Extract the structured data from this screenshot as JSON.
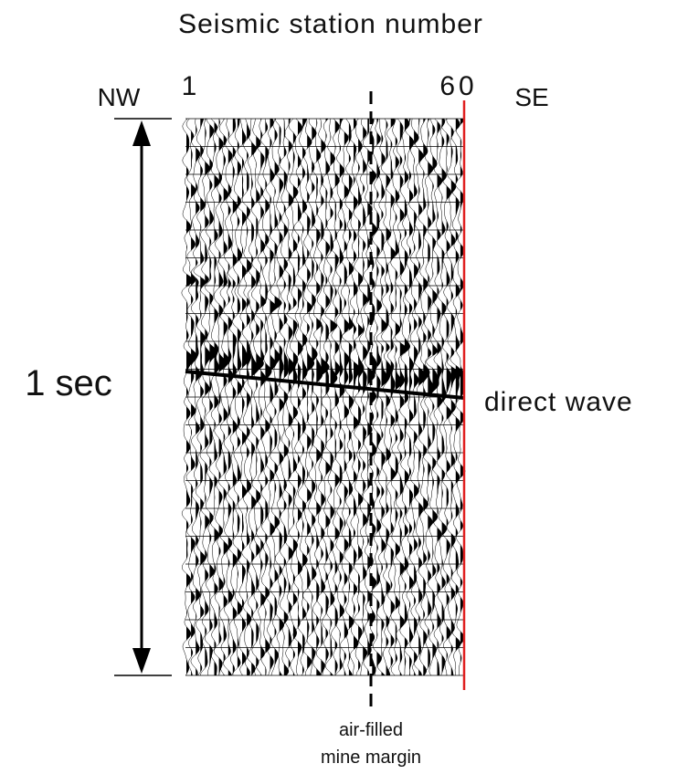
{
  "title": "Seismic station number",
  "stations": {
    "first": "1",
    "last": "60"
  },
  "directions": {
    "left": "NW",
    "right": "SE"
  },
  "time_span": "1 sec",
  "annotations": {
    "direct_wave": "direct wave",
    "mine_margin": [
      "air-filled",
      "mine margin"
    ]
  }
}
